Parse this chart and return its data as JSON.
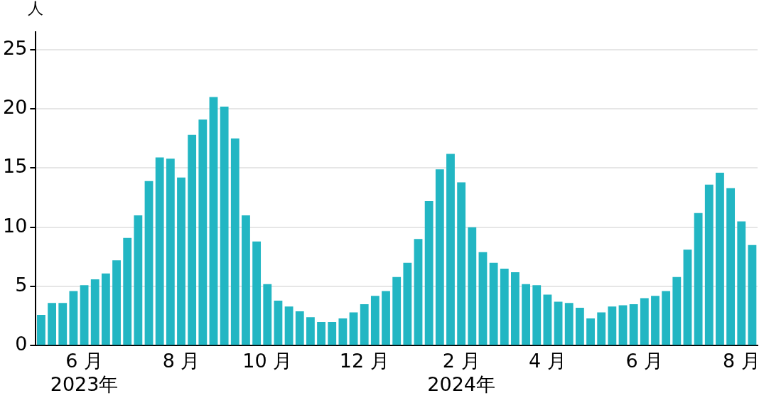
{
  "chart_data": {
    "type": "bar",
    "ylabel": "人",
    "categories": [
      null,
      null,
      null,
      null,
      "6 月\n2023年",
      null,
      null,
      null,
      null,
      null,
      null,
      null,
      null,
      "8 月",
      null,
      null,
      null,
      null,
      null,
      null,
      null,
      "10 月",
      null,
      null,
      null,
      null,
      null,
      null,
      null,
      null,
      "12 月",
      null,
      null,
      null,
      null,
      null,
      null,
      null,
      null,
      "2 月\n2024年",
      null,
      null,
      null,
      null,
      null,
      null,
      null,
      "4 月",
      null,
      null,
      null,
      null,
      null,
      null,
      null,
      null,
      "6 月",
      null,
      null,
      null,
      null,
      null,
      null,
      null,
      null,
      "8 月",
      null
    ],
    "values": [
      2.6,
      3.6,
      3.6,
      4.6,
      5.1,
      5.6,
      6.1,
      7.2,
      9.1,
      11.0,
      13.9,
      15.9,
      15.8,
      14.2,
      17.8,
      19.1,
      21.0,
      20.2,
      17.5,
      11.0,
      8.8,
      5.2,
      3.8,
      3.3,
      2.9,
      2.4,
      2.0,
      2.0,
      2.3,
      2.8,
      3.5,
      4.2,
      4.6,
      5.8,
      7.0,
      9.0,
      12.2,
      14.9,
      16.2,
      13.8,
      10.0,
      7.9,
      7.0,
      6.5,
      6.2,
      5.2,
      5.1,
      4.3,
      3.7,
      3.6,
      3.2,
      2.3,
      2.8,
      3.3,
      3.4,
      3.5,
      4.0,
      4.2,
      4.6,
      5.8,
      8.1,
      11.2,
      13.6,
      14.6,
      13.3,
      10.5,
      8.5
    ],
    "color": "#22b6c3",
    "ylim": [
      0,
      26.5
    ],
    "yticks": [
      0,
      5,
      10,
      15,
      20,
      25
    ],
    "grid": "y",
    "legend": false
  }
}
